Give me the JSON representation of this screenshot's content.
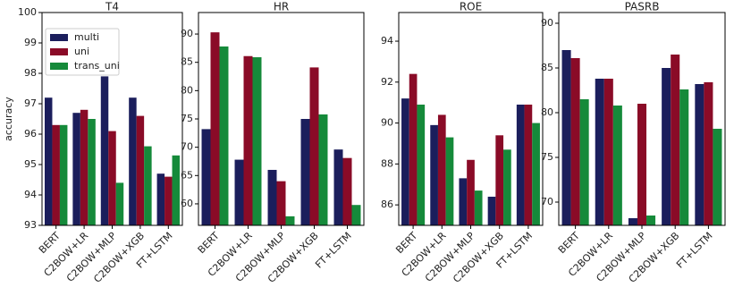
{
  "chart_data": [
    {
      "type": "bar",
      "title": "T4",
      "ylabel": "accuracy",
      "legend": "upper left",
      "categories": [
        "BERT",
        "C2BOW+LR",
        "C2BOW+MLP",
        "C2BOW+XGB",
        "FT+LSTM"
      ],
      "series": [
        {
          "name": "multi",
          "color": "#1b1e5c",
          "values": [
            97.2,
            96.7,
            97.9,
            97.2,
            94.7
          ]
        },
        {
          "name": "uni",
          "color": "#8a0b27",
          "values": [
            96.3,
            96.8,
            96.1,
            96.6,
            94.6
          ]
        },
        {
          "name": "trans_uni",
          "color": "#158a3a",
          "values": [
            96.3,
            96.5,
            94.4,
            95.6,
            95.3
          ]
        }
      ],
      "ylim": [
        93,
        100
      ],
      "yticks": [
        93,
        94,
        95,
        96,
        97,
        98,
        99,
        100
      ]
    },
    {
      "type": "bar",
      "title": "HR",
      "categories": [
        "BERT",
        "C2BOW+LR",
        "C2BOW+MLP",
        "C2BOW+XGB",
        "FT+LSTM"
      ],
      "series": [
        {
          "name": "multi",
          "color": "#1b1e5c",
          "values": [
            73.2,
            67.8,
            66.0,
            75.0,
            69.6
          ]
        },
        {
          "name": "uni",
          "color": "#8a0b27",
          "values": [
            90.3,
            86.1,
            64.0,
            84.1,
            68.1
          ]
        },
        {
          "name": "trans_uni",
          "color": "#158a3a",
          "values": [
            87.8,
            85.9,
            57.8,
            75.8,
            59.8
          ]
        }
      ],
      "ylim": [
        56.2,
        93.8
      ],
      "yticks": [
        60,
        65,
        70,
        75,
        80,
        85,
        90
      ]
    },
    {
      "type": "bar",
      "title": "ROE",
      "categories": [
        "BERT",
        "C2BOW+LR",
        "C2BOW+MLP",
        "C2BOW+XGB",
        "FT+LSTM"
      ],
      "series": [
        {
          "name": "multi",
          "color": "#1b1e5c",
          "values": [
            91.2,
            89.9,
            87.3,
            86.4,
            90.9
          ]
        },
        {
          "name": "uni",
          "color": "#8a0b27",
          "values": [
            92.4,
            90.4,
            88.2,
            89.4,
            90.9
          ]
        },
        {
          "name": "trans_uni",
          "color": "#158a3a",
          "values": [
            90.9,
            89.3,
            86.7,
            88.7,
            90.0
          ]
        }
      ],
      "ylim": [
        85.0,
        95.4
      ],
      "yticks": [
        86,
        88,
        90,
        92,
        94
      ]
    },
    {
      "type": "bar",
      "title": "PASRB",
      "categories": [
        "BERT",
        "C2BOW+LR",
        "C2BOW+MLP",
        "C2BOW+XGB",
        "FT+LSTM"
      ],
      "series": [
        {
          "name": "multi",
          "color": "#1b1e5c",
          "values": [
            87.0,
            83.8,
            68.2,
            85.0,
            83.2
          ]
        },
        {
          "name": "uni",
          "color": "#8a0b27",
          "values": [
            86.1,
            83.8,
            81.0,
            86.5,
            83.4
          ]
        },
        {
          "name": "trans_uni",
          "color": "#158a3a",
          "values": [
            81.5,
            80.8,
            68.5,
            82.6,
            78.2
          ]
        }
      ],
      "ylim": [
        67.4,
        91.2
      ],
      "yticks": [
        70,
        75,
        80,
        85,
        90
      ]
    }
  ]
}
